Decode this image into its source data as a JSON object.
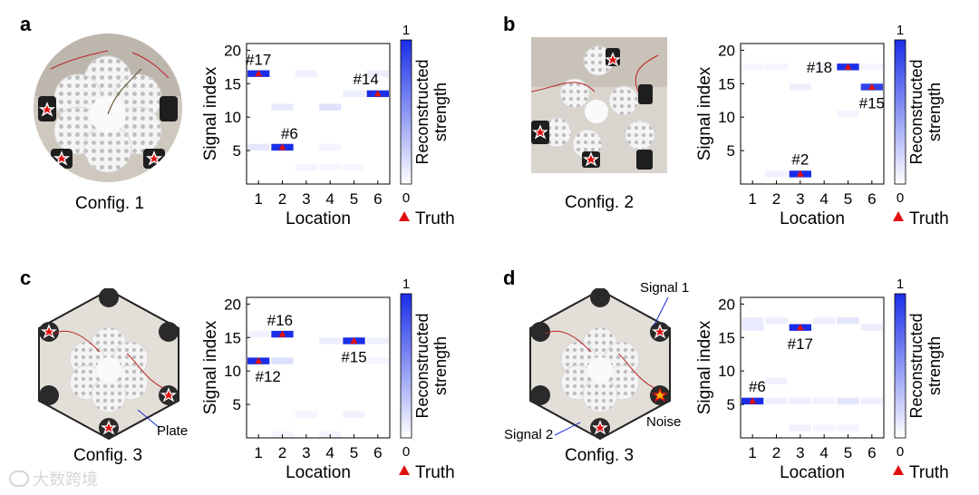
{
  "panels": [
    {
      "letter": "a",
      "config_label": "Config. 1",
      "photo_kind": "round",
      "photo_notes": [],
      "chart_data": {
        "type": "heatmap",
        "xlabel": "Location",
        "ylabel": "Signal index",
        "x_categories": [
          "1",
          "2",
          "3",
          "4",
          "5",
          "6"
        ],
        "y_ticks": [
          5,
          10,
          15,
          20
        ],
        "ylim": [
          0,
          21
        ],
        "colorbar": {
          "label": "Reconstructed strength",
          "min": "0",
          "max": "1"
        },
        "legend": "Truth",
        "cells": [
          {
            "loc": 1,
            "sig": 17,
            "v": 1.0
          },
          {
            "loc": 2,
            "sig": 6,
            "v": 1.0
          },
          {
            "loc": 6,
            "sig": 14,
            "v": 1.0
          },
          {
            "loc": 1,
            "sig": 6,
            "v": 0.12
          },
          {
            "loc": 3,
            "sig": 17,
            "v": 0.06
          },
          {
            "loc": 2,
            "sig": 12,
            "v": 0.1
          },
          {
            "loc": 4,
            "sig": 12,
            "v": 0.14
          },
          {
            "loc": 5,
            "sig": 14,
            "v": 0.08
          },
          {
            "loc": 6,
            "sig": 17,
            "v": 0.08
          },
          {
            "loc": 4,
            "sig": 6,
            "v": 0.05
          },
          {
            "loc": 3,
            "sig": 3,
            "v": 0.05
          },
          {
            "loc": 4,
            "sig": 3,
            "v": 0.04
          },
          {
            "loc": 5,
            "sig": 3,
            "v": 0.04
          }
        ],
        "truth": [
          {
            "loc": 1,
            "sig": 17
          },
          {
            "loc": 2,
            "sig": 6
          },
          {
            "loc": 6,
            "sig": 14
          }
        ],
        "annotations": [
          {
            "text": "#17",
            "loc": 1,
            "sig": 19.1
          },
          {
            "text": "#6",
            "loc": 2.3,
            "sig": 8.1
          },
          {
            "text": "#14",
            "loc": 5.5,
            "sig": 16.2
          }
        ]
      }
    },
    {
      "letter": "b",
      "config_label": "Config. 2",
      "photo_kind": "rect",
      "photo_notes": [],
      "chart_data": {
        "type": "heatmap",
        "xlabel": "Location",
        "ylabel": "Signal index",
        "x_categories": [
          "1",
          "2",
          "3",
          "4",
          "5",
          "6"
        ],
        "y_ticks": [
          5,
          10,
          15,
          20
        ],
        "ylim": [
          0,
          21
        ],
        "colorbar": {
          "label": "Reconstructed strength",
          "min": "0",
          "max": "1"
        },
        "legend": "Truth",
        "cells": [
          {
            "loc": 3,
            "sig": 2,
            "v": 1.0
          },
          {
            "loc": 5,
            "sig": 18,
            "v": 1.0
          },
          {
            "loc": 6,
            "sig": 15,
            "v": 0.9
          },
          {
            "loc": 2,
            "sig": 2,
            "v": 0.06
          },
          {
            "loc": 3,
            "sig": 15,
            "v": 0.07
          },
          {
            "loc": 1,
            "sig": 18,
            "v": 0.05
          },
          {
            "loc": 2,
            "sig": 18,
            "v": 0.05
          },
          {
            "loc": 5,
            "sig": 11,
            "v": 0.05
          },
          {
            "loc": 4,
            "sig": 18,
            "v": 0.04
          },
          {
            "loc": 6,
            "sig": 18,
            "v": 0.05
          }
        ],
        "truth": [
          {
            "loc": 3,
            "sig": 2
          },
          {
            "loc": 5,
            "sig": 18
          },
          {
            "loc": 6,
            "sig": 15
          }
        ],
        "annotations": [
          {
            "text": "#2",
            "loc": 3,
            "sig": 4.2
          },
          {
            "text": "#18",
            "loc": 3.8,
            "sig": 18
          },
          {
            "text": "#15",
            "loc": 6,
            "sig": 12.6
          }
        ]
      }
    },
    {
      "letter": "c",
      "config_label": "Config. 3",
      "photo_kind": "hex",
      "photo_notes": [
        {
          "text": "Plate",
          "color": "#1a2fcc"
        }
      ],
      "chart_data": {
        "type": "heatmap",
        "xlabel": "Location",
        "ylabel": "Signal index",
        "x_categories": [
          "1",
          "2",
          "3",
          "4",
          "5",
          "6"
        ],
        "y_ticks": [
          5,
          10,
          15,
          20
        ],
        "ylim": [
          0,
          21
        ],
        "colorbar": {
          "label": "Reconstructed strength",
          "min": "0",
          "max": "1"
        },
        "legend": "Truth",
        "cells": [
          {
            "loc": 1,
            "sig": 12,
            "v": 1.0
          },
          {
            "loc": 2,
            "sig": 16,
            "v": 1.0
          },
          {
            "loc": 5,
            "sig": 15,
            "v": 1.0
          },
          {
            "loc": 2,
            "sig": 12,
            "v": 0.15
          },
          {
            "loc": 1,
            "sig": 16,
            "v": 0.06
          },
          {
            "loc": 4,
            "sig": 15,
            "v": 0.08
          },
          {
            "loc": 6,
            "sig": 15,
            "v": 0.07
          },
          {
            "loc": 5,
            "sig": 4,
            "v": 0.06
          },
          {
            "loc": 3,
            "sig": 4,
            "v": 0.05
          },
          {
            "loc": 4,
            "sig": 1,
            "v": 0.05
          },
          {
            "loc": 6,
            "sig": 12,
            "v": 0.05
          },
          {
            "loc": 2,
            "sig": 1,
            "v": 0.04
          }
        ],
        "truth": [
          {
            "loc": 1,
            "sig": 12
          },
          {
            "loc": 2,
            "sig": 16
          },
          {
            "loc": 5,
            "sig": 15
          }
        ],
        "annotations": [
          {
            "text": "#16",
            "loc": 1.9,
            "sig": 18.1
          },
          {
            "text": "#12",
            "loc": 1.4,
            "sig": 9.7
          },
          {
            "text": "#15",
            "loc": 5,
            "sig": 12.6
          }
        ]
      }
    },
    {
      "letter": "d",
      "config_label": "Config. 3",
      "photo_kind": "hex",
      "photo_notes": [
        {
          "text": "Signal 1",
          "color": "#1a2fcc"
        },
        {
          "text": "Signal 2",
          "color": "#1a2fcc"
        },
        {
          "text": "Noise",
          "color": "#e01010"
        }
      ],
      "chart_data": {
        "type": "heatmap",
        "xlabel": "Location",
        "ylabel": "Signal index",
        "x_categories": [
          "1",
          "2",
          "3",
          "4",
          "5",
          "6"
        ],
        "y_ticks": [
          5,
          10,
          15,
          20
        ],
        "ylim": [
          0,
          21
        ],
        "colorbar": {
          "label": "Reconstructed strength",
          "min": "0",
          "max": "1"
        },
        "legend": "Truth",
        "cells": [
          {
            "loc": 1,
            "sig": 6,
            "v": 1.0
          },
          {
            "loc": 3,
            "sig": 17,
            "v": 1.0
          },
          {
            "loc": 1,
            "sig": 18,
            "v": 0.1
          },
          {
            "loc": 1,
            "sig": 17,
            "v": 0.1
          },
          {
            "loc": 2,
            "sig": 18,
            "v": 0.08
          },
          {
            "loc": 4,
            "sig": 18,
            "v": 0.08
          },
          {
            "loc": 5,
            "sig": 18,
            "v": 0.12
          },
          {
            "loc": 6,
            "sig": 17,
            "v": 0.08
          },
          {
            "loc": 5,
            "sig": 6,
            "v": 0.12
          },
          {
            "loc": 2,
            "sig": 6,
            "v": 0.08
          },
          {
            "loc": 3,
            "sig": 6,
            "v": 0.07
          },
          {
            "loc": 4,
            "sig": 6,
            "v": 0.06
          },
          {
            "loc": 6,
            "sig": 6,
            "v": 0.07
          },
          {
            "loc": 2,
            "sig": 9,
            "v": 0.06
          },
          {
            "loc": 3,
            "sig": 2,
            "v": 0.06
          },
          {
            "loc": 4,
            "sig": 2,
            "v": 0.05
          },
          {
            "loc": 5,
            "sig": 2,
            "v": 0.05
          }
        ],
        "truth": [
          {
            "loc": 1,
            "sig": 6
          },
          {
            "loc": 3,
            "sig": 17
          }
        ],
        "annotations": [
          {
            "text": "#6",
            "loc": 1.2,
            "sig": 8.2
          },
          {
            "text": "#17",
            "loc": 3,
            "sig": 14.6
          }
        ]
      }
    }
  ],
  "watermark": "大数跨境",
  "colors": {
    "max": "#1a2ee8",
    "truth": "#e01010"
  }
}
